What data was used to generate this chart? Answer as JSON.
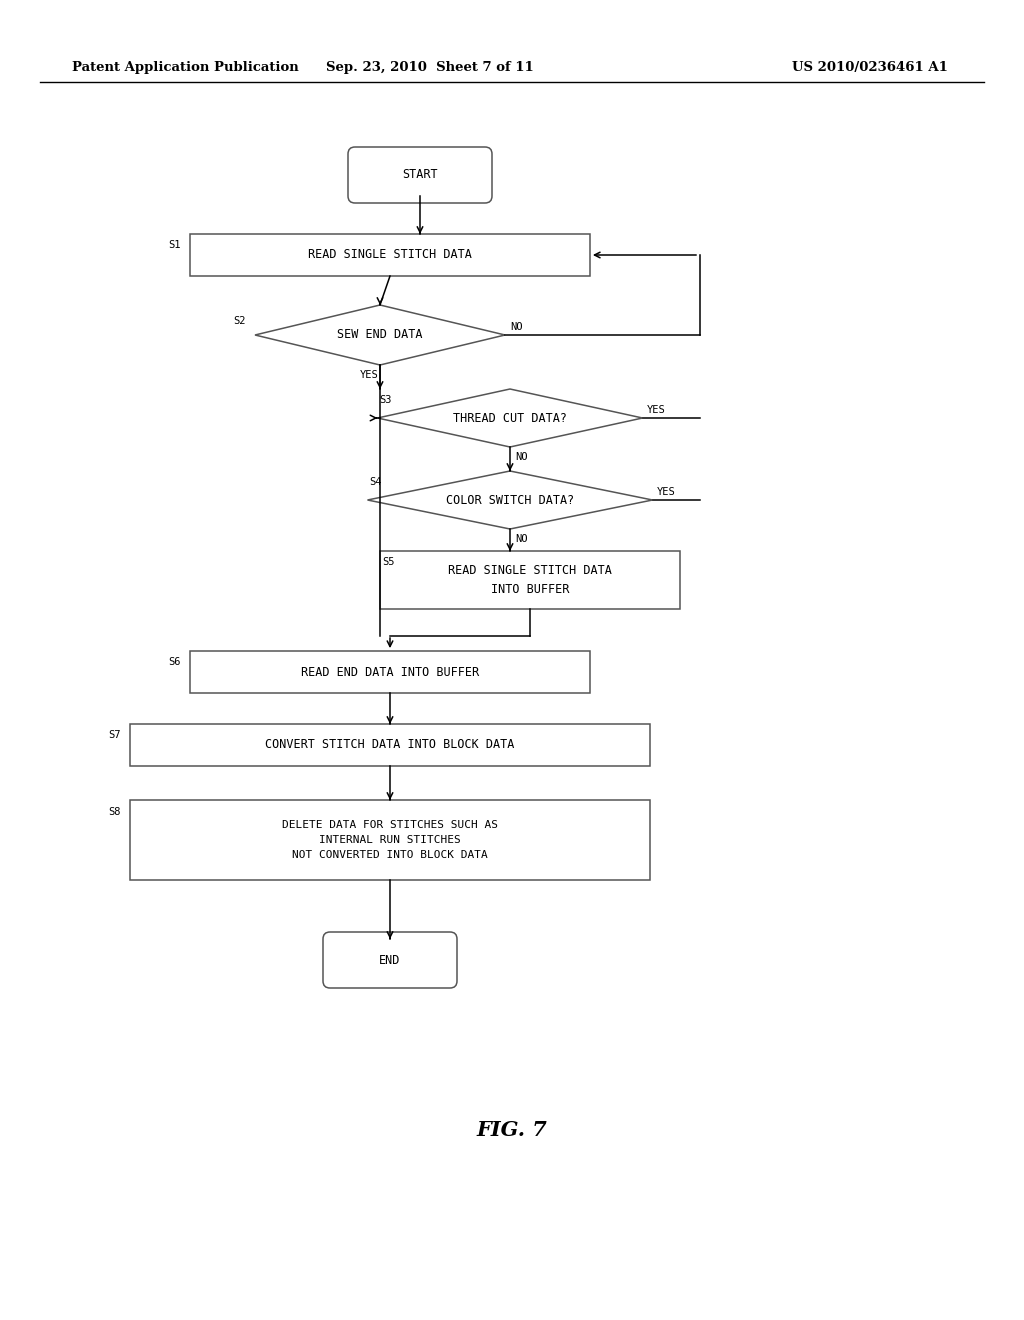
{
  "background_color": "#ffffff",
  "header_left": "Patent Application Publication",
  "header_mid": "Sep. 23, 2010  Sheet 7 of 11",
  "header_right": "US 2010/0236461 A1",
  "figure_label": "FIG. 7",
  "font_size_node": 8.5,
  "font_size_header": 9.5,
  "font_size_step": 8.5,
  "font_size_fig": 15,
  "font_size_label": 7.5
}
